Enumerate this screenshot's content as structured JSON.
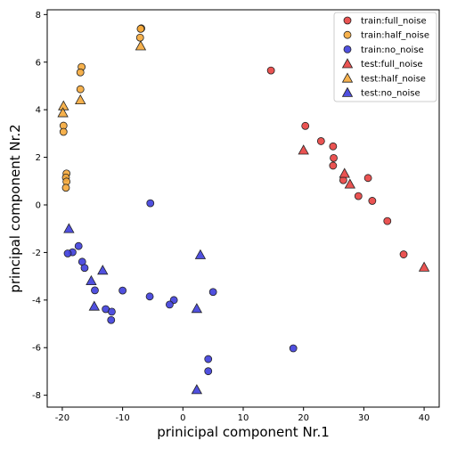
{
  "chart_data": {
    "type": "scatter",
    "xlabel": "prinicipal component Nr.1",
    "ylabel": "principal component Nr.2",
    "xlim": [
      -22.5,
      42.5
    ],
    "ylim": [
      -8.5,
      8.2
    ],
    "xticks": [
      -20,
      -10,
      0,
      10,
      20,
      30,
      40
    ],
    "yticks": [
      -8,
      -6,
      -4,
      -2,
      0,
      2,
      4,
      6,
      8
    ],
    "legend_position": "top-right",
    "grid": false,
    "series": [
      {
        "name": "train:full_noise",
        "marker": "circle",
        "color": "#e8403f",
        "x": [
          14.6,
          20.3,
          22.9,
          24.9,
          25.0,
          24.9,
          26.6,
          29.1,
          30.7,
          31.4,
          33.9,
          36.6
        ],
        "y": [
          5.65,
          3.32,
          2.68,
          2.46,
          1.97,
          1.65,
          1.04,
          0.37,
          1.13,
          0.17,
          -0.68,
          -2.08
        ]
      },
      {
        "name": "train:half_noise",
        "marker": "circle",
        "color": "#f5a93a",
        "x": [
          -6.9,
          -7.0,
          -7.1,
          -16.8,
          -17.0,
          -17.0,
          -19.8,
          -19.8,
          -19.3,
          -19.4,
          -19.3,
          -19.4
        ],
        "y": [
          7.42,
          7.4,
          7.03,
          5.8,
          5.57,
          4.86,
          3.33,
          3.07,
          1.32,
          1.15,
          0.98,
          0.72
        ]
      },
      {
        "name": "train:no_noise",
        "marker": "circle",
        "color": "#3d3ddb",
        "x": [
          -5.4,
          -17.3,
          -18.3,
          -19.1,
          -16.7,
          -16.3,
          -14.6,
          -10.0,
          -12.8,
          -11.8,
          -11.9,
          -5.5,
          -1.5,
          -2.2,
          5.0,
          18.3,
          4.2,
          4.2
        ],
        "y": [
          0.07,
          -1.73,
          -1.99,
          -2.04,
          -2.39,
          -2.65,
          -3.59,
          -3.6,
          -4.38,
          -4.49,
          -4.84,
          -3.85,
          -4.0,
          -4.19,
          -3.66,
          -6.03,
          -6.48,
          -6.99
        ]
      },
      {
        "name": "test:full_noise",
        "marker": "triangle",
        "color": "#e8403f",
        "x": [
          20.0,
          26.8,
          27.7,
          40.0
        ],
        "y": [
          2.3,
          1.32,
          0.87,
          -2.62
        ]
      },
      {
        "name": "test:half_noise",
        "marker": "triangle",
        "color": "#f5a93a",
        "x": [
          -7.0,
          -19.8,
          -19.9,
          -17.0
        ],
        "y": [
          6.68,
          4.16,
          3.87,
          4.41
        ]
      },
      {
        "name": "test:no_noise",
        "marker": "triangle",
        "color": "#3d3ddb",
        "x": [
          -18.9,
          -13.3,
          -15.2,
          -14.7,
          2.9,
          2.3,
          2.3
        ],
        "y": [
          -1.0,
          -2.75,
          -3.19,
          -4.26,
          -2.1,
          -4.36,
          -7.77
        ]
      }
    ]
  }
}
